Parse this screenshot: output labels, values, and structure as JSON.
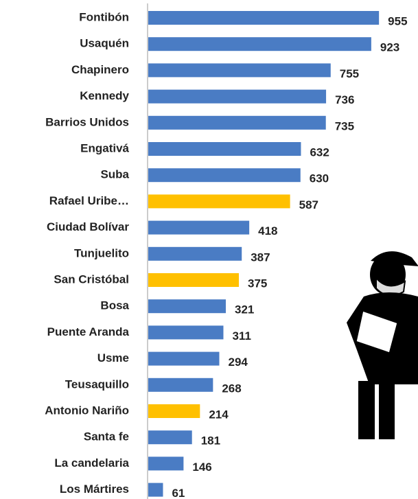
{
  "chart_data": {
    "type": "bar",
    "categories": [
      "Fontibón",
      "Usaquén",
      "Chapinero",
      "Kennedy",
      "Barrios Unidos",
      "Engativá",
      "Suba",
      "Rafael Uribe…",
      "Ciudad Bolívar",
      "Tunjuelito",
      "San Cristóbal",
      "Bosa",
      "Puente Aranda",
      "Usme",
      "Teusaquillo",
      "Antonio Nariño",
      "Santa fe",
      "La candelaria",
      "Los Mártires"
    ],
    "values": [
      955,
      923,
      755,
      736,
      735,
      632,
      630,
      587,
      418,
      387,
      375,
      321,
      311,
      294,
      268,
      214,
      181,
      146,
      61
    ],
    "colors": [
      "#4a7cc4",
      "#4a7cc4",
      "#4a7cc4",
      "#4a7cc4",
      "#4a7cc4",
      "#4a7cc4",
      "#4a7cc4",
      "#ffc000",
      "#4a7cc4",
      "#4a7cc4",
      "#ffc000",
      "#4a7cc4",
      "#4a7cc4",
      "#4a7cc4",
      "#4a7cc4",
      "#ffc000",
      "#4a7cc4",
      "#4a7cc4",
      "#4a7cc4"
    ],
    "xlim": [
      0,
      1000
    ]
  }
}
